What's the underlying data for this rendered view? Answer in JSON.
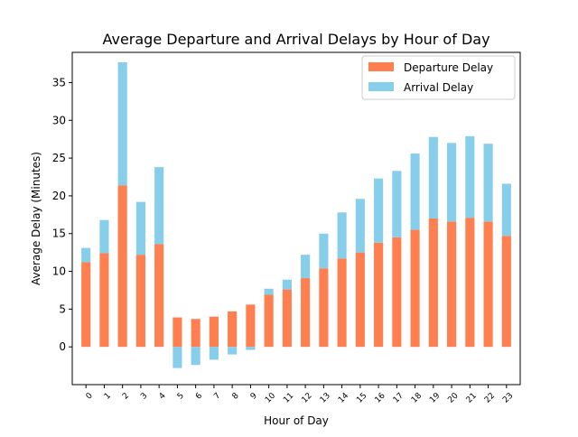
{
  "chart_data": {
    "type": "bar",
    "stacked": true,
    "title": "Average Departure and Arrival Delays by Hour of Day",
    "xlabel": "Hour of Day",
    "ylabel": "Average Delay (Minutes)",
    "categories": [
      "0",
      "1",
      "2",
      "3",
      "4",
      "5",
      "6",
      "7",
      "8",
      "9",
      "10",
      "11",
      "12",
      "13",
      "14",
      "15",
      "16",
      "17",
      "18",
      "19",
      "20",
      "21",
      "22",
      "23"
    ],
    "ylim": [
      -5,
      39
    ],
    "yticks": [
      0,
      5,
      10,
      15,
      20,
      25,
      30,
      35
    ],
    "legend_position": "top-right",
    "grid": false,
    "series": [
      {
        "name": "Departure Delay",
        "color": "#ff7f50",
        "values": [
          11.2,
          12.4,
          21.4,
          12.2,
          13.6,
          3.9,
          3.7,
          4.0,
          4.7,
          5.6,
          6.9,
          7.6,
          9.1,
          10.4,
          11.7,
          12.5,
          13.8,
          14.5,
          15.5,
          17.0,
          16.6,
          17.1,
          16.6,
          14.7
        ]
      },
      {
        "name": "Arrival Delay",
        "color": "#87ceeb",
        "values": [
          1.9,
          4.4,
          16.3,
          7.0,
          10.2,
          -2.8,
          -2.4,
          -1.7,
          -1.0,
          -0.4,
          0.8,
          1.3,
          3.1,
          4.6,
          6.1,
          7.1,
          8.5,
          8.8,
          10.1,
          10.8,
          10.4,
          10.8,
          10.3,
          6.9
        ]
      }
    ]
  }
}
